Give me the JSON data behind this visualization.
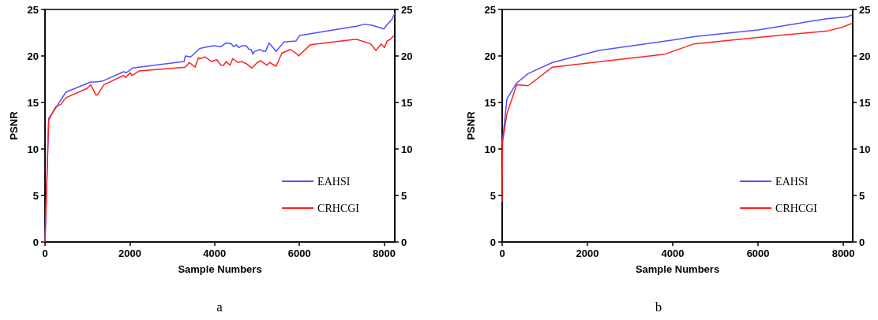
{
  "chart_data": [
    {
      "type": "line",
      "xlabel": "Sample Numbers",
      "ylabel": "PSNR",
      "annotations": [
        "a"
      ],
      "xlim": [
        0,
        8250
      ],
      "xticks": [
        0,
        2000,
        4000,
        6000,
        8000
      ],
      "ylim": [
        0,
        25
      ],
      "yticks": [
        0,
        5,
        10,
        15,
        20,
        25
      ],
      "y2lim": [
        0,
        25
      ],
      "y2ticks": [
        0,
        5,
        10,
        15,
        20,
        25
      ],
      "grid": false,
      "legend": "bottom right",
      "marker": "none",
      "line_style": "solid",
      "series": [
        {
          "name": "EAHSI",
          "color": "#5050ff",
          "x": [
            0,
            87,
            210,
            490,
            1079,
            1203,
            1358,
            1854,
            1916,
            2070,
            3280,
            3310,
            3435,
            3650,
            3963,
            4149,
            4273,
            4397,
            4447,
            4509,
            4571,
            4645,
            4738,
            4819,
            4862,
            4905,
            4943,
            5079,
            5141,
            5203,
            5284,
            5451,
            5637,
            5916,
            6009,
            7342,
            7528,
            7714,
            7993,
            8055,
            8179,
            8250
          ],
          "values": [
            0,
            13.3,
            14.1,
            16.1,
            17.2,
            17.2,
            17.3,
            18.3,
            18.2,
            18.7,
            19.4,
            20.0,
            19.9,
            20.8,
            21.1,
            21.0,
            21.4,
            21.3,
            21.0,
            21.2,
            20.9,
            21.1,
            21.1,
            20.7,
            20.7,
            20.2,
            20.5,
            20.7,
            20.5,
            20.5,
            21.4,
            20.5,
            21.5,
            21.6,
            22.2,
            23.2,
            23.4,
            23.3,
            22.9,
            23.3,
            23.9,
            24.6
          ]
        },
        {
          "name": "CRHCGI",
          "color": "#ff2020",
          "x": [
            0,
            87,
            248,
            372,
            490,
            986,
            1079,
            1203,
            1234,
            1389,
            1854,
            1904,
            2009,
            2052,
            2226,
            3310,
            3403,
            3540,
            3621,
            3650,
            3774,
            3929,
            4053,
            4149,
            4211,
            4273,
            4366,
            4428,
            4552,
            4633,
            4738,
            4881,
            4986,
            5079,
            5172,
            5234,
            5296,
            5451,
            5587,
            5792,
            5947,
            5978,
            6257,
            7342,
            7683,
            7807,
            7931,
            8005,
            8067,
            8148,
            8229
          ],
          "values": [
            0,
            13.1,
            14.5,
            14.8,
            15.5,
            16.5,
            16.9,
            15.8,
            15.8,
            16.9,
            17.9,
            17.7,
            18.2,
            17.9,
            18.4,
            18.8,
            19.3,
            18.8,
            19.8,
            19.7,
            19.9,
            19.4,
            19.6,
            19.0,
            19.0,
            19.4,
            19.0,
            19.7,
            19.3,
            19.4,
            19.2,
            18.7,
            19.2,
            19.5,
            19.2,
            19.0,
            19.3,
            18.9,
            20.3,
            20.7,
            20.2,
            20.0,
            21.2,
            21.8,
            21.3,
            20.6,
            21.3,
            20.9,
            21.6,
            21.8,
            22.2
          ]
        }
      ]
    },
    {
      "type": "line",
      "xlabel": "Sample Numbers",
      "ylabel": "PSNR",
      "annotations": [
        "b"
      ],
      "xlim": [
        0,
        8220
      ],
      "xticks": [
        0,
        2000,
        4000,
        6000,
        8000
      ],
      "ylim": [
        0,
        25
      ],
      "yticks": [
        0,
        5,
        10,
        15,
        20,
        25
      ],
      "y2lim": [
        0,
        25
      ],
      "y2ticks": [
        0,
        5,
        10,
        15,
        20,
        25
      ],
      "grid": false,
      "legend": "bottom right",
      "marker": "none",
      "line_style": "solid",
      "series": [
        {
          "name": "EAHSI",
          "color": "#5050ff",
          "x": [
            0,
            112,
            342,
            609,
            1180,
            2267,
            3974,
            4533,
            6000,
            7610,
            8074,
            8198
          ],
          "values": [
            10.5,
            15.4,
            17.1,
            18.1,
            19.3,
            20.6,
            21.7,
            22.1,
            22.8,
            24.0,
            24.2,
            24.4
          ]
        },
        {
          "name": "CRHCGI",
          "color": "#ff2020",
          "x": [
            0,
            10,
            112,
            342,
            609,
            1180,
            3819,
            4500,
            6000,
            7640,
            7981,
            8198
          ],
          "values": [
            4.3,
            10.8,
            13.8,
            16.9,
            16.8,
            18.8,
            20.2,
            21.3,
            22.0,
            22.7,
            23.1,
            23.5
          ]
        }
      ]
    }
  ]
}
